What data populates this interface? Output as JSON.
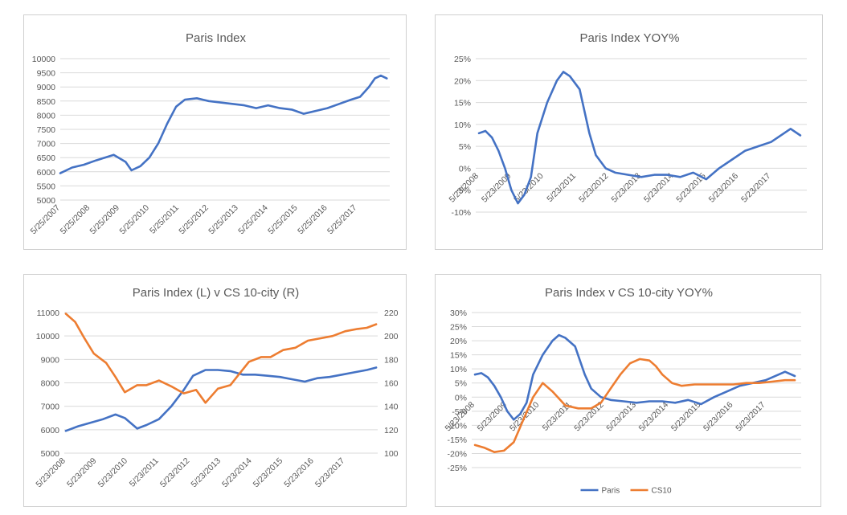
{
  "chart_data": [
    {
      "type": "line",
      "title": "Paris Index",
      "ylim": [
        5000,
        10000
      ],
      "yticks": [
        "10000",
        "9500",
        "9000",
        "8500",
        "8000",
        "7500",
        "7000",
        "6500",
        "6000",
        "5500",
        "5000"
      ],
      "xticks": [
        "5/25/2007",
        "5/25/2008",
        "5/25/2009",
        "5/25/2010",
        "5/25/2011",
        "5/25/2012",
        "5/25/2013",
        "5/25/2014",
        "5/25/2015",
        "5/25/2016",
        "5/25/2017"
      ],
      "grid": true,
      "series": [
        {
          "color": "#4472C4",
          "x": [
            2007.4,
            2007.8,
            2008.2,
            2008.6,
            2008.9,
            2009.2,
            2009.6,
            2009.8,
            2010.1,
            2010.4,
            2010.7,
            2011.0,
            2011.3,
            2011.6,
            2012.0,
            2012.4,
            2012.8,
            2013.2,
            2013.6,
            2014.0,
            2014.4,
            2014.8,
            2015.2,
            2015.6,
            2016.0,
            2016.4,
            2016.8,
            2017.2,
            2017.5,
            2017.8,
            2018.0,
            2018.2,
            2018.4
          ],
          "y": [
            5950,
            6150,
            6250,
            6400,
            6500,
            6600,
            6350,
            6050,
            6200,
            6500,
            7000,
            7700,
            8300,
            8550,
            8600,
            8500,
            8450,
            8400,
            8350,
            8250,
            8350,
            8250,
            8200,
            8050,
            8150,
            8250,
            8400,
            8550,
            8650,
            9000,
            9300,
            9400,
            9300
          ]
        }
      ]
    },
    {
      "type": "line",
      "title": "Paris Index YOY%",
      "ylim": [
        -10,
        25
      ],
      "yticks": [
        "25%",
        "20%",
        "15%",
        "10%",
        "5%",
        "0%",
        "-5%",
        "-10%"
      ],
      "xticks": [
        "5/23/2008",
        "5/23/2009",
        "5/23/2010",
        "5/23/2011",
        "5/23/2012",
        "5/23/2013",
        "5/23/2014",
        "5/23/2015",
        "5/23/2016",
        "5/23/2017"
      ],
      "grid": true,
      "series": [
        {
          "color": "#4472C4",
          "x": [
            2008.4,
            2008.6,
            2008.8,
            2009.0,
            2009.2,
            2009.4,
            2009.6,
            2009.8,
            2010.0,
            2010.2,
            2010.5,
            2010.8,
            2011.0,
            2011.2,
            2011.5,
            2011.8,
            2012.0,
            2012.3,
            2012.6,
            2013.0,
            2013.4,
            2013.8,
            2014.2,
            2014.6,
            2015.0,
            2015.4,
            2015.8,
            2016.2,
            2016.6,
            2017.0,
            2017.4,
            2017.8,
            2018.0,
            2018.3
          ],
          "y": [
            8,
            8.5,
            7,
            4,
            0,
            -5,
            -8,
            -6,
            -2,
            8,
            15,
            20,
            22,
            21,
            18,
            8,
            3,
            0,
            -1,
            -1.5,
            -2,
            -1.5,
            -1.5,
            -2,
            -1,
            -2.5,
            0,
            2,
            4,
            5,
            6,
            8,
            9,
            7.5
          ]
        }
      ]
    },
    {
      "type": "line",
      "title": "Paris Index (L) v CS 10-city (R)",
      "ylim": [
        5000,
        11000
      ],
      "y2lim": [
        100,
        220
      ],
      "yticks": [
        "11000",
        "10000",
        "9000",
        "8000",
        "7000",
        "6000",
        "5000"
      ],
      "y2ticks": [
        "220",
        "200",
        "180",
        "160",
        "140",
        "120",
        "100"
      ],
      "xticks": [
        "5/23/2008",
        "5/23/2009",
        "5/23/2010",
        "5/23/2011",
        "5/23/2012",
        "5/23/2013",
        "5/23/2014",
        "5/23/2015",
        "5/23/2016",
        "5/23/2017"
      ],
      "grid": true,
      "series": [
        {
          "color": "#4472C4",
          "axis": "left",
          "x": [
            2008.4,
            2008.8,
            2009.2,
            2009.6,
            2010.0,
            2010.3,
            2010.7,
            2011.0,
            2011.4,
            2011.8,
            2012.2,
            2012.5,
            2012.9,
            2013.3,
            2013.7,
            2014.1,
            2014.5,
            2014.9,
            2015.3,
            2015.7,
            2016.1,
            2016.5,
            2016.9,
            2017.3,
            2017.7,
            2018.1,
            2018.4
          ],
          "y": [
            5950,
            6150,
            6300,
            6450,
            6650,
            6500,
            6050,
            6200,
            6450,
            7000,
            7700,
            8300,
            8550,
            8550,
            8500,
            8350,
            8350,
            8300,
            8250,
            8150,
            8050,
            8200,
            8250,
            8350,
            8450,
            8550,
            8650
          ]
        },
        {
          "color": "#ED7D31",
          "axis": "right",
          "x": [
            2008.4,
            2008.7,
            2009.0,
            2009.3,
            2009.7,
            2010.0,
            2010.3,
            2010.7,
            2011.0,
            2011.4,
            2011.8,
            2012.2,
            2012.6,
            2012.9,
            2013.3,
            2013.7,
            2014.0,
            2014.3,
            2014.7,
            2015.0,
            2015.4,
            2015.8,
            2016.2,
            2016.6,
            2017.0,
            2017.4,
            2017.8,
            2018.1,
            2018.4
          ],
          "y": [
            219,
            212,
            198,
            185,
            177,
            165,
            152,
            158,
            158,
            162,
            157,
            151,
            154,
            143,
            155,
            158,
            168,
            178,
            182,
            182,
            188,
            190,
            196,
            198,
            200,
            204,
            206,
            207,
            210
          ]
        }
      ]
    },
    {
      "type": "line",
      "title": "Paris Index v CS 10-city YOY%",
      "ylim": [
        -25,
        30
      ],
      "yticks": [
        "30%",
        "25%",
        "20%",
        "15%",
        "10%",
        "5%",
        "0%",
        "-5%",
        "-10%",
        "-15%",
        "-20%",
        "-25%"
      ],
      "xticks": [
        "5/23/2008",
        "5/23/2009",
        "5/23/2010",
        "5/23/2011",
        "5/23/2012",
        "5/23/2013",
        "5/23/2014",
        "5/23/2015",
        "5/23/2016",
        "5/23/2017"
      ],
      "grid": true,
      "legend": "bottom",
      "series": [
        {
          "name": "Paris",
          "color": "#4472C4",
          "x": [
            2008.4,
            2008.6,
            2008.8,
            2009.0,
            2009.2,
            2009.4,
            2009.6,
            2009.8,
            2010.0,
            2010.2,
            2010.5,
            2010.8,
            2011.0,
            2011.2,
            2011.5,
            2011.8,
            2012.0,
            2012.3,
            2012.6,
            2013.0,
            2013.4,
            2013.8,
            2014.2,
            2014.6,
            2015.0,
            2015.4,
            2015.8,
            2016.2,
            2016.6,
            2017.0,
            2017.4,
            2017.8,
            2018.0,
            2018.3
          ],
          "y": [
            8,
            8.5,
            7,
            4,
            0,
            -5,
            -8,
            -6,
            -2,
            8,
            15,
            20,
            22,
            21,
            18,
            8,
            3,
            0,
            -1,
            -1.5,
            -2,
            -1.5,
            -1.5,
            -2,
            -1,
            -2.5,
            0,
            2,
            4,
            5,
            6,
            8,
            9,
            7.5
          ]
        },
        {
          "name": "CS10",
          "color": "#ED7D31",
          "x": [
            2008.4,
            2008.7,
            2009.0,
            2009.3,
            2009.6,
            2009.9,
            2010.2,
            2010.5,
            2010.8,
            2011.2,
            2011.6,
            2012.0,
            2012.3,
            2012.6,
            2012.9,
            2013.2,
            2013.5,
            2013.8,
            2014.0,
            2014.2,
            2014.5,
            2014.8,
            2015.2,
            2015.6,
            2016.0,
            2016.4,
            2016.8,
            2017.2,
            2017.6,
            2018.0,
            2018.3
          ],
          "y": [
            -17,
            -18,
            -19.5,
            -19,
            -16,
            -8,
            0,
            5,
            2,
            -3,
            -4,
            -4,
            -2,
            3,
            8,
            12,
            13.5,
            13,
            11,
            8,
            5,
            4,
            4.5,
            4.5,
            4.5,
            4.5,
            5,
            5,
            5.5,
            6,
            6
          ]
        }
      ]
    }
  ],
  "legend4": {
    "paris_label": "Paris",
    "cs10_label": "CS10"
  }
}
